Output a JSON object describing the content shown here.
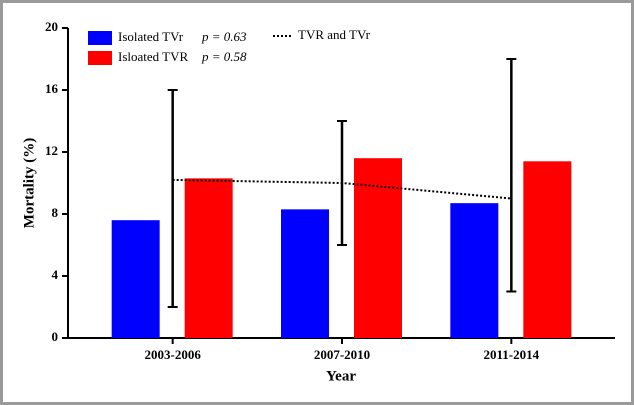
{
  "chart_data": {
    "type": "bar",
    "categories": [
      "2003-2006",
      "2007-2010",
      "2011-2014"
    ],
    "x_label": "Year",
    "y_label": "Mortality (%)",
    "ylim": [
      0,
      20
    ],
    "yticks": [
      0,
      4,
      8,
      12,
      16,
      20
    ],
    "series": [
      {
        "name": "Isolated TVr",
        "annotation": "p = 0.63",
        "type": "bar",
        "color": "#0000ff",
        "values": [
          7.6,
          8.3,
          8.7
        ]
      },
      {
        "name": "Isloated TVR",
        "annotation": "p = 0.58",
        "type": "bar",
        "color": "#ff0000",
        "values": [
          10.3,
          11.6,
          11.4
        ]
      },
      {
        "name": "TVR and TVr",
        "type": "line",
        "color": "#000000",
        "values": [
          10.2,
          10.0,
          9.0
        ],
        "low": [
          2,
          6,
          3
        ],
        "high": [
          16,
          14,
          18
        ]
      }
    ]
  }
}
